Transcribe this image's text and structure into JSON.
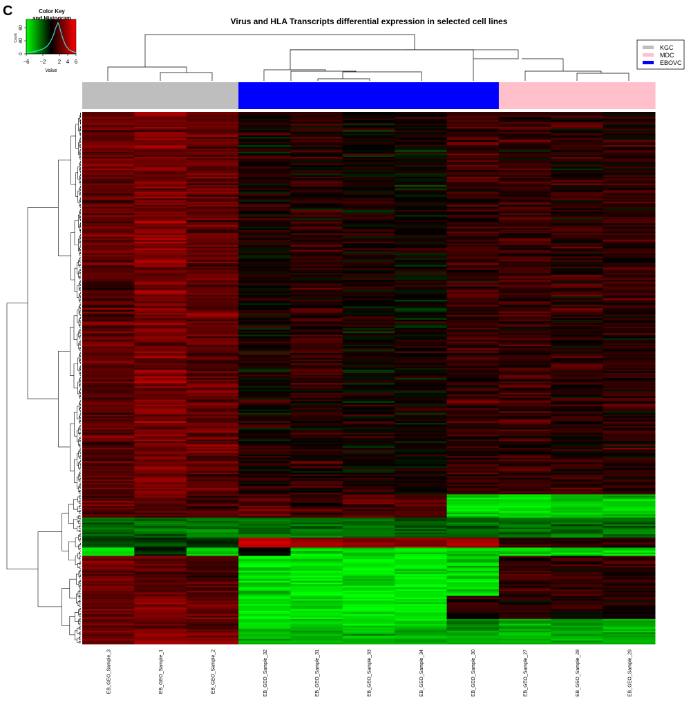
{
  "panel_label": "C",
  "chart_data": {
    "type": "heatmap",
    "title": "Virus and HLA Transcripts differential expression in selected cell lines",
    "samples": [
      "EB_GEO_Sample_3",
      "EB_GEO_Sample_1",
      "EB_GEO_Sample_2",
      "EB_GEO_Sample_32",
      "EB_GEO_Sample_31",
      "EB_GEO_Sample_33",
      "EB_GEO_Sample_34",
      "EB_GEO_Sample_30",
      "EB_GEO_Sample_27",
      "EB_GEO_Sample_28",
      "EB_GEO_Sample_29"
    ],
    "sample_groups": [
      "KGC",
      "KGC",
      "KGC",
      "EBOVC",
      "EBOVC",
      "EBOVC",
      "EBOVC",
      "EBOVC",
      "MDC",
      "MDC",
      "MDC"
    ],
    "legend": {
      "position": "top-right",
      "entries": [
        {
          "label": "KGC",
          "color": "#bebebe"
        },
        {
          "label": "MDC",
          "color": "#ffc0cb"
        },
        {
          "label": "EBOVC",
          "color": "#0000ff"
        }
      ]
    },
    "color_scale": {
      "low": "#00ff00",
      "mid": "#000000",
      "high": "#ff0000",
      "range": [
        -6,
        6
      ]
    },
    "color_key": {
      "title_line1": "Color Key",
      "title_line2": "and Histogram",
      "xlabel": "Value",
      "ylabel": "Count",
      "x_ticks": [
        "−6",
        "−2",
        "2",
        "4",
        "6"
      ],
      "y_ticks": [
        "0",
        "40",
        "80"
      ]
    },
    "row_blocks": [
      {
        "rows": 230,
        "values": [
          2.2,
          2.8,
          2.3,
          0.4,
          0.9,
          0.3,
          0.2,
          1.3,
          1.2,
          0.9,
          1.0
        ],
        "noise": 1.1
      },
      {
        "rows": 14,
        "values": [
          2.0,
          1.8,
          1.6,
          2.0,
          1.5,
          1.7,
          1.8,
          -5.0,
          -5.0,
          -5.0,
          -5.0
        ],
        "noise": 0.9
      },
      {
        "rows": 12,
        "values": [
          -2.5,
          -2.5,
          -2.5,
          -2.6,
          -2.5,
          -2.6,
          -2.4,
          -2.5,
          -2.6,
          -2.5,
          -2.5
        ],
        "noise": 0.8
      },
      {
        "rows": 6,
        "values": [
          -1.2,
          -1.3,
          -1.2,
          4.5,
          3.5,
          3.2,
          3.3,
          4.0,
          1.0,
          1.0,
          1.0
        ],
        "noise": 0.6
      },
      {
        "rows": 5,
        "values": [
          -5.0,
          -0.5,
          -5.0,
          -0.5,
          -5.0,
          -5.0,
          -5.0,
          -5.0,
          -5.0,
          -5.0,
          -5.0
        ],
        "noise": 1.0
      },
      {
        "rows": 24,
        "values": [
          2.4,
          2.0,
          1.8,
          -5.5,
          -5.5,
          -5.5,
          -5.5,
          -5.0,
          1.4,
          1.3,
          1.0
        ],
        "noise": 1.0
      },
      {
        "rows": 14,
        "values": [
          2.6,
          2.9,
          2.6,
          -5.5,
          -5.5,
          -5.5,
          -5.5,
          0.8,
          1.0,
          0.9,
          0.8
        ],
        "noise": 1.0
      },
      {
        "rows": 6,
        "values": [
          2.6,
          2.5,
          2.3,
          -5.0,
          -5.0,
          -5.0,
          -5.0,
          -3.0,
          -4.0,
          -4.0,
          -4.0
        ],
        "noise": 0.8
      },
      {
        "rows": 9,
        "values": [
          2.7,
          3.0,
          2.8,
          -4.2,
          -4.2,
          -4.2,
          -4.2,
          -4.0,
          -4.2,
          -4.2,
          -4.2
        ],
        "noise": 0.8
      }
    ]
  }
}
